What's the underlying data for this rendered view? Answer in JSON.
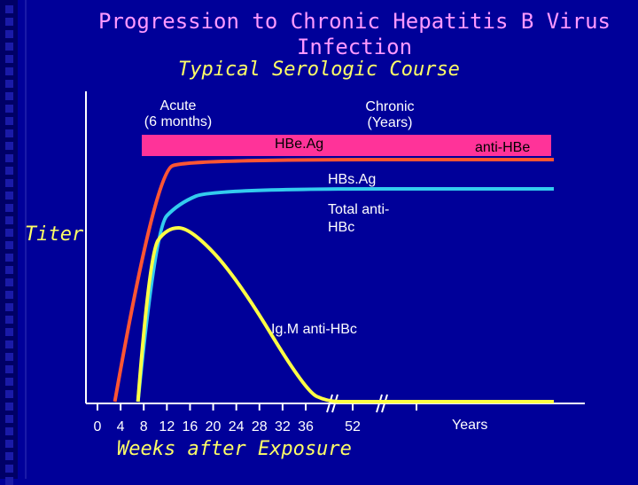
{
  "title": "Progression to Chronic Hepatitis B Virus Infection",
  "subtitle": "Typical Serologic Course",
  "phases": {
    "acute": "Acute\n(6 months)",
    "chronic": "Chronic\n(Years)"
  },
  "bar": {
    "left_label": "HBe.Ag",
    "right_label": "anti-HBe",
    "color": "#ff3399"
  },
  "y_label": "Titer",
  "x_title": "Weeks after Exposure",
  "x_unit_label": "Years",
  "colors": {
    "background": "#000099",
    "title": "#ff99ff",
    "accent": "#ffff66",
    "hbsag": "#ff5533",
    "anti_hbc": "#33ccee",
    "igm": "#ffff44"
  },
  "chart_data": {
    "type": "line",
    "title": "Progression to Chronic Hepatitis B Virus Infection",
    "subtitle": "Typical Serologic Course",
    "xlabel": "Weeks after Exposure",
    "ylabel": "Titer",
    "x_ticks": [
      "0",
      "4",
      "8",
      "12",
      "16",
      "20",
      "24",
      "28",
      "32",
      "36",
      "52"
    ],
    "axis_break_after": "36",
    "series": [
      {
        "name": "HBs.Ag",
        "color": "#ff5533",
        "points": [
          [
            3,
            0
          ],
          [
            10,
            0.95
          ],
          [
            16,
            1
          ],
          [
            "Years",
            1
          ]
        ]
      },
      {
        "name": "Total anti-HBc",
        "color": "#33ccee",
        "points": [
          [
            7,
            0
          ],
          [
            10,
            0.72
          ],
          [
            14,
            0.82
          ],
          [
            20,
            0.88
          ],
          [
            "Years",
            0.88
          ]
        ]
      },
      {
        "name": "Ig.M anti-HBc",
        "color": "#ffff44",
        "points": [
          [
            7,
            0
          ],
          [
            9,
            0.62
          ],
          [
            12,
            0.72
          ],
          [
            16,
            0.72
          ],
          [
            24,
            0.52
          ],
          [
            36,
            0.05
          ],
          [
            40,
            0
          ],
          [
            52,
            0
          ],
          [
            "Years",
            0
          ]
        ]
      }
    ]
  }
}
